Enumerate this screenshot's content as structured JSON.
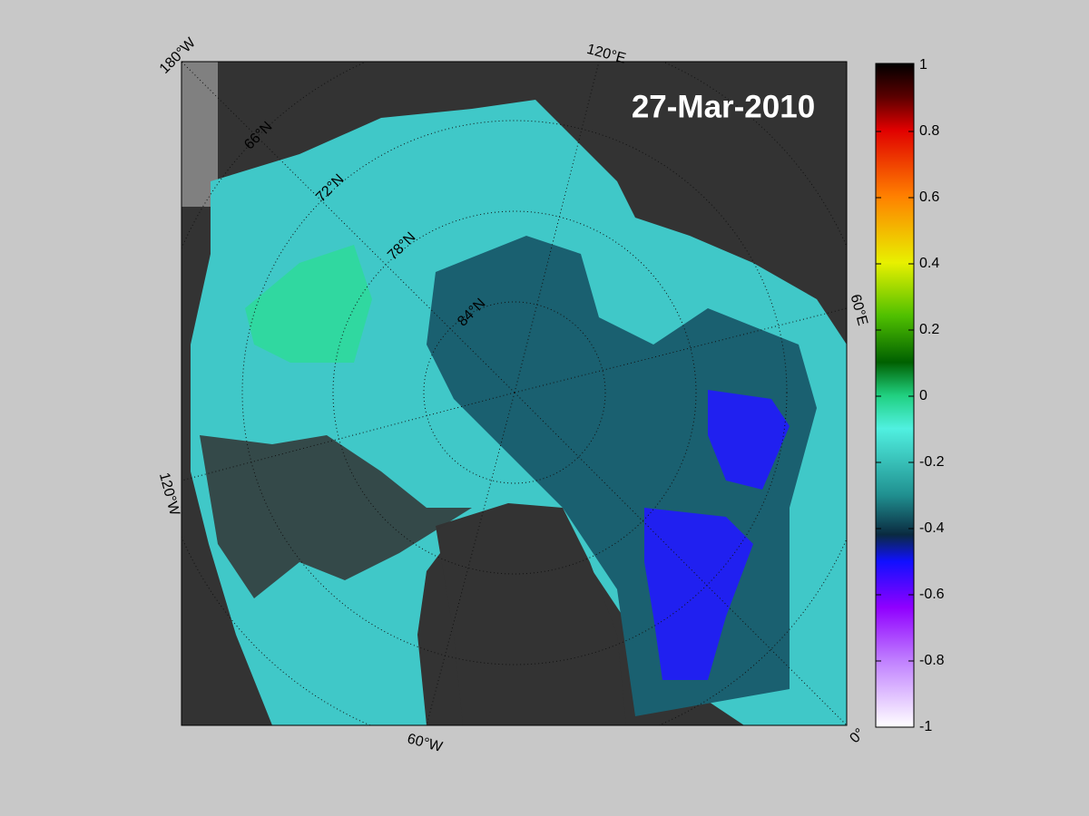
{
  "map": {
    "date": "27-Mar-2010",
    "longitude_labels": [
      "180°W",
      "120°E",
      "60°E",
      "0°",
      "60°W",
      "120°W"
    ],
    "latitude_labels": [
      "66°N",
      "72°N",
      "78°N",
      "84°N"
    ],
    "colorbar": {
      "lim": [
        -1,
        1
      ],
      "ticks": [
        1,
        0.8,
        0.6,
        0.4,
        0.2,
        0,
        -0.2,
        -0.4,
        -0.6,
        -0.8,
        -1
      ]
    }
  }
}
